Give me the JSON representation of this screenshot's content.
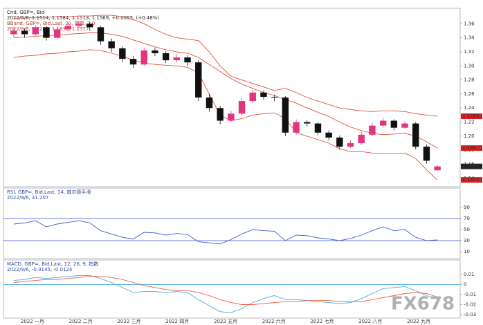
{
  "chart_data": [
    {
      "type": "candlestick",
      "title": "Cnd, GBP=, Bid",
      "subtitle": "2022/9/6, 1.1514, 1.1584, 1.1513, 1.1569, +0.0055, (+0.48%)",
      "band_title": "BBand, GBP=, Bid,Last, 20, 简单, 2.0",
      "band_subtitle": "2022/9/6, 1.2283, 1.1830, 1.1377",
      "up_color": "#e2357f",
      "down_color": "#111111",
      "open": [
        1.345,
        1.35,
        1.345,
        1.355,
        1.34,
        1.352,
        1.357,
        1.36,
        1.355,
        1.335,
        1.325,
        1.31,
        1.302,
        1.322,
        1.318,
        1.308,
        1.312,
        1.305,
        1.255,
        1.24,
        1.222,
        1.232,
        1.25,
        1.262,
        1.256,
        1.255,
        1.205,
        1.22,
        1.218,
        1.205,
        1.198,
        1.185,
        1.19,
        1.202,
        1.215,
        1.222,
        1.212,
        1.218,
        1.185,
        1.1514
      ],
      "high": [
        1.354,
        1.353,
        1.358,
        1.357,
        1.355,
        1.361,
        1.364,
        1.362,
        1.357,
        1.339,
        1.328,
        1.314,
        1.326,
        1.326,
        1.321,
        1.316,
        1.315,
        1.308,
        1.26,
        1.243,
        1.236,
        1.254,
        1.266,
        1.265,
        1.259,
        1.257,
        1.224,
        1.223,
        1.22,
        1.208,
        1.201,
        1.194,
        1.206,
        1.219,
        1.226,
        1.224,
        1.221,
        1.22,
        1.188,
        1.1584
      ],
      "low": [
        1.341,
        1.34,
        1.343,
        1.336,
        1.338,
        1.349,
        1.353,
        1.35,
        1.33,
        1.32,
        1.305,
        1.297,
        1.3,
        1.314,
        1.304,
        1.305,
        1.3,
        1.25,
        1.235,
        1.217,
        1.22,
        1.229,
        1.247,
        1.252,
        1.25,
        1.2,
        1.202,
        1.214,
        1.201,
        1.194,
        1.181,
        1.183,
        1.188,
        1.2,
        1.212,
        1.208,
        1.21,
        1.181,
        1.161,
        1.1513
      ],
      "close": [
        1.35,
        1.345,
        1.355,
        1.34,
        1.352,
        1.357,
        1.36,
        1.355,
        1.335,
        1.325,
        1.31,
        1.302,
        1.322,
        1.318,
        1.308,
        1.312,
        1.305,
        1.255,
        1.24,
        1.222,
        1.232,
        1.25,
        1.262,
        1.256,
        1.255,
        1.205,
        1.22,
        1.218,
        1.205,
        1.198,
        1.185,
        1.19,
        1.202,
        1.215,
        1.222,
        1.212,
        1.218,
        1.185,
        1.165,
        1.1569
      ],
      "series": [
        {
          "color": "#e0503c",
          "values": [
            1.368,
            1.368,
            1.369,
            1.369,
            1.37,
            1.37,
            1.371,
            1.371,
            1.372,
            1.372,
            1.37,
            1.366,
            1.36,
            1.352,
            1.345,
            1.34,
            1.338,
            1.336,
            1.32,
            1.3,
            1.285,
            1.28,
            1.275,
            1.27,
            1.265,
            1.268,
            1.262,
            1.255,
            1.25,
            1.245,
            1.24,
            1.238,
            1.236,
            1.235,
            1.236,
            1.236,
            1.235,
            1.232,
            1.23,
            1.2283
          ]
        },
        {
          "color": "#e0503c",
          "values": [
            1.34,
            1.341,
            1.342,
            1.343,
            1.344,
            1.345,
            1.346,
            1.347,
            1.347,
            1.345,
            1.342,
            1.337,
            1.332,
            1.327,
            1.323,
            1.32,
            1.318,
            1.312,
            1.302,
            1.292,
            1.282,
            1.274,
            1.268,
            1.262,
            1.258,
            1.252,
            1.247,
            1.24,
            1.234,
            1.228,
            1.22,
            1.213,
            1.208,
            1.204,
            1.202,
            1.203,
            1.204,
            1.2,
            1.192,
            1.183
          ]
        },
        {
          "color": "#e0503c",
          "values": [
            1.312,
            1.314,
            1.315,
            1.317,
            1.318,
            1.32,
            1.321,
            1.323,
            1.322,
            1.318,
            1.314,
            1.308,
            1.304,
            1.302,
            1.301,
            1.3,
            1.298,
            1.29,
            1.26,
            1.23,
            1.222,
            1.225,
            1.23,
            1.232,
            1.233,
            1.225,
            1.205,
            1.2,
            1.195,
            1.19,
            1.182,
            1.178,
            1.178,
            1.176,
            1.175,
            1.175,
            1.176,
            1.168,
            1.152,
            1.1377
          ]
        }
      ],
      "ylim": [
        1.13,
        1.38
      ],
      "yticks": [
        1.14,
        1.16,
        1.18,
        {
          "value": 1.2,
          "label": "1.20"
        },
        1.22,
        1.24,
        1.26,
        1.28,
        {
          "value": 1.3,
          "label": "1.30"
        },
        1.32,
        1.34,
        1.36
      ]
    },
    {
      "type": "line",
      "title": "RSI, GBP=, Bid,Last, 14, 威尔德平滑",
      "subtitle": "2022/9/6, 31.207",
      "series": [
        {
          "color": "#3b5bd6",
          "values": [
            60,
            62,
            66,
            55,
            60,
            63,
            66,
            62,
            48,
            42,
            36,
            33,
            45,
            44,
            40,
            43,
            41,
            28,
            26,
            24,
            32,
            42,
            50,
            48,
            47,
            30,
            40,
            39,
            35,
            33,
            30,
            34,
            40,
            48,
            55,
            48,
            50,
            36,
            30,
            31.207
          ]
        }
      ],
      "levels": [
        30,
        70
      ],
      "level_color": "#3b4bd0",
      "ylim": [
        0,
        100
      ],
      "yticks": [
        10,
        30,
        50,
        70,
        90
      ]
    },
    {
      "type": "line",
      "title": "MACD, GBP=, Bid,Last, 12, 26, 9, 指数",
      "subtitle": "2022/9/6, -0.0145, -0.0124",
      "series": [
        {
          "color": "#4aa8e8",
          "values": [
            0.004,
            0.005,
            0.007,
            0.006,
            0.007,
            0.008,
            0.009,
            0.009,
            0.006,
            0.002,
            -0.003,
            -0.008,
            -0.007,
            -0.007,
            -0.008,
            -0.007,
            -0.008,
            -0.015,
            -0.021,
            -0.027,
            -0.028,
            -0.024,
            -0.018,
            -0.014,
            -0.011,
            -0.015,
            -0.015,
            -0.016,
            -0.017,
            -0.018,
            -0.019,
            -0.018,
            -0.014,
            -0.009,
            -0.004,
            -0.003,
            -0.002,
            -0.006,
            -0.011,
            -0.0145
          ]
        },
        {
          "color": "#ee5a3c",
          "values": [
            0.002,
            0.003,
            0.004,
            0.005,
            0.005,
            0.006,
            0.007,
            0.008,
            0.008,
            0.007,
            0.005,
            0.002,
            -0.001,
            -0.003,
            -0.005,
            -0.006,
            -0.006,
            -0.008,
            -0.011,
            -0.015,
            -0.018,
            -0.02,
            -0.02,
            -0.019,
            -0.018,
            -0.017,
            -0.017,
            -0.016,
            -0.016,
            -0.016,
            -0.017,
            -0.017,
            -0.017,
            -0.015,
            -0.013,
            -0.011,
            -0.009,
            -0.008,
            -0.009,
            -0.0124
          ]
        }
      ],
      "levels": [
        0
      ],
      "level_color": "#4aa8e8",
      "ylim": [
        -0.032,
        0.012
      ],
      "yticks": [
        -0.03,
        -0.02,
        -0.01,
        0,
        0.01
      ]
    }
  ],
  "x_labels": [
    "2022 一月",
    "2022 二月",
    "2022 三月",
    "2022 四月",
    "2022 五月",
    "2022 六月",
    "2022 七月",
    "2022 八月",
    "2022 九月"
  ],
  "watermark": "FX678"
}
